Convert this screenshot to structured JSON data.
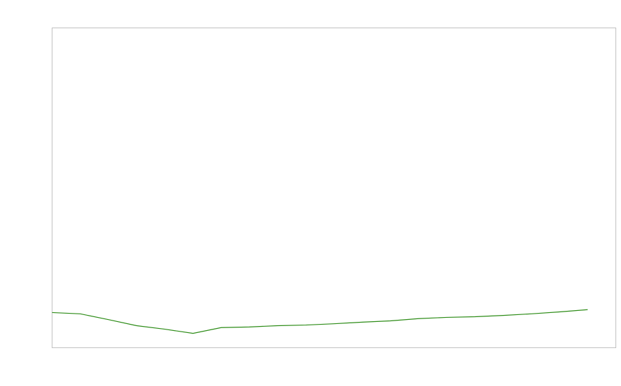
{
  "chart_data": {
    "type": "line",
    "title": "",
    "xlabel": "",
    "ylabel": "",
    "xlim": [
      0,
      20
    ],
    "ylim": [
      0,
      100
    ],
    "grid": false,
    "x": [
      0,
      1,
      2,
      3,
      4,
      5,
      6,
      7,
      8,
      9,
      10,
      11,
      12,
      13,
      14,
      15,
      16,
      17,
      18,
      19
    ],
    "series": [
      {
        "color": "#2a8a14",
        "values": [
          11.0,
          10.6,
          8.8,
          6.9,
          5.8,
          4.5,
          6.3,
          6.5,
          6.9,
          7.1,
          7.5,
          8.0,
          8.4,
          9.1,
          9.5,
          9.7,
          10.1,
          10.6,
          11.2,
          11.9
        ]
      }
    ],
    "frame_color": "#c0c0c0"
  }
}
